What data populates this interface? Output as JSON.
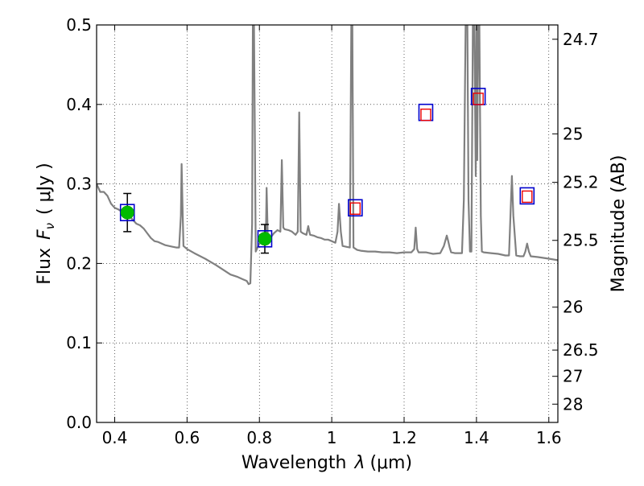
{
  "chart_data": {
    "type": "line",
    "xlabel_text": "Wavelength",
    "xlabel_symbol": "λ",
    "xlabel_unit": "(μm)",
    "ylabel_text": "Flux",
    "ylabel_symbol": "F",
    "ylabel_subscript": "ν",
    "ylabel_unit": "( μJy )",
    "right_ylabel": "Magnitude (AB)",
    "xlim": [
      0.35,
      1.625
    ],
    "ylim": [
      0.0,
      0.5
    ],
    "grid": true,
    "x_ticks": [
      0.4,
      0.6,
      0.8,
      1.0,
      1.2,
      1.4,
      1.6
    ],
    "x_tick_labels": [
      "0.4",
      "0.6",
      "0.8",
      "1",
      "1.2",
      "1.4",
      "1.6"
    ],
    "y_ticks": [
      0.0,
      0.1,
      0.2,
      0.3,
      0.4,
      0.5
    ],
    "y_tick_labels": [
      "0.0",
      "0.1",
      "0.2",
      "0.3",
      "0.4",
      "0.5"
    ],
    "right_ticks": [
      {
        "flux": 0.482,
        "label": "24.7"
      },
      {
        "flux": 0.363,
        "label": "25"
      },
      {
        "flux": 0.302,
        "label": "25.2"
      },
      {
        "flux": 0.229,
        "label": "25.5"
      },
      {
        "flux": 0.145,
        "label": "26"
      },
      {
        "flux": 0.091,
        "label": "26.5"
      },
      {
        "flux": 0.058,
        "label": "27"
      },
      {
        "flux": 0.023,
        "label": "28"
      }
    ],
    "series": [
      {
        "kind": "model-spectrum",
        "color": "#808080",
        "x": [
          0.35,
          0.36,
          0.37,
          0.38,
          0.39,
          0.4,
          0.41,
          0.42,
          0.43,
          0.44,
          0.45,
          0.46,
          0.47,
          0.48,
          0.49,
          0.5,
          0.51,
          0.52,
          0.53,
          0.54,
          0.55,
          0.56,
          0.57,
          0.578,
          0.583,
          0.585,
          0.588,
          0.59,
          0.6,
          0.62,
          0.65,
          0.68,
          0.7,
          0.72,
          0.74,
          0.755,
          0.765,
          0.77,
          0.775,
          0.78,
          0.782,
          0.785,
          0.79,
          0.8,
          0.81,
          0.818,
          0.82,
          0.823,
          0.83,
          0.84,
          0.85,
          0.858,
          0.862,
          0.866,
          0.87,
          0.88,
          0.89,
          0.9,
          0.906,
          0.91,
          0.914,
          0.92,
          0.93,
          0.935,
          0.94,
          0.95,
          0.96,
          0.97,
          0.98,
          0.99,
          1.0,
          1.01,
          1.016,
          1.02,
          1.025,
          1.03,
          1.04,
          1.05,
          1.054,
          1.057,
          1.06,
          1.07,
          1.08,
          1.1,
          1.12,
          1.14,
          1.16,
          1.18,
          1.2,
          1.22,
          1.228,
          1.232,
          1.236,
          1.24,
          1.26,
          1.28,
          1.3,
          1.31,
          1.318,
          1.322,
          1.326,
          1.33,
          1.34,
          1.36,
          1.365,
          1.37,
          1.375,
          1.378,
          1.382,
          1.386,
          1.39,
          1.394,
          1.398,
          1.4,
          1.402,
          1.405,
          1.408,
          1.412,
          1.415,
          1.42,
          1.44,
          1.46,
          1.48,
          1.49,
          1.494,
          1.498,
          1.502,
          1.51,
          1.52,
          1.53,
          1.535,
          1.54,
          1.545,
          1.55,
          1.57,
          1.6,
          1.625
        ],
        "y": [
          0.3,
          0.29,
          0.29,
          0.285,
          0.275,
          0.27,
          0.268,
          0.265,
          0.263,
          0.26,
          0.255,
          0.25,
          0.248,
          0.244,
          0.238,
          0.232,
          0.228,
          0.227,
          0.225,
          0.223,
          0.222,
          0.221,
          0.22,
          0.22,
          0.26,
          0.325,
          0.26,
          0.222,
          0.218,
          0.213,
          0.206,
          0.198,
          0.192,
          0.186,
          0.183,
          0.18,
          0.178,
          0.174,
          0.175,
          0.25,
          0.5,
          0.5,
          0.215,
          0.225,
          0.228,
          0.235,
          0.295,
          0.235,
          0.232,
          0.238,
          0.242,
          0.24,
          0.33,
          0.245,
          0.243,
          0.242,
          0.24,
          0.236,
          0.24,
          0.39,
          0.24,
          0.238,
          0.236,
          0.247,
          0.236,
          0.235,
          0.233,
          0.232,
          0.23,
          0.23,
          0.228,
          0.226,
          0.24,
          0.275,
          0.24,
          0.222,
          0.221,
          0.22,
          0.5,
          0.5,
          0.22,
          0.217,
          0.216,
          0.215,
          0.215,
          0.214,
          0.214,
          0.213,
          0.214,
          0.214,
          0.218,
          0.245,
          0.218,
          0.214,
          0.214,
          0.212,
          0.213,
          0.222,
          0.235,
          0.228,
          0.22,
          0.214,
          0.213,
          0.213,
          0.28,
          0.5,
          0.5,
          0.28,
          0.215,
          0.215,
          0.5,
          0.5,
          0.31,
          0.5,
          0.33,
          0.5,
          0.5,
          0.26,
          0.215,
          0.214,
          0.213,
          0.212,
          0.21,
          0.21,
          0.26,
          0.31,
          0.26,
          0.21,
          0.209,
          0.209,
          0.215,
          0.225,
          0.215,
          0.209,
          0.208,
          0.206,
          0.204
        ]
      },
      {
        "kind": "photometry-detections",
        "color": "#00bb00",
        "x": [
          0.435,
          0.815
        ],
        "y": [
          0.264,
          0.231
        ],
        "yerr": [
          0.024,
          0.018
        ]
      },
      {
        "kind": "model-fluxes-outer",
        "color": "#0000cc",
        "x": [
          0.435,
          0.815,
          1.065,
          1.26,
          1.405,
          1.54
        ],
        "y": [
          0.264,
          0.231,
          0.27,
          0.39,
          0.41,
          0.285
        ]
      },
      {
        "kind": "model-fluxes-inner",
        "color": "#ee0000",
        "x": [
          1.065,
          1.26,
          1.405,
          1.54
        ],
        "y": [
          0.269,
          0.387,
          0.407,
          0.284
        ]
      }
    ]
  }
}
